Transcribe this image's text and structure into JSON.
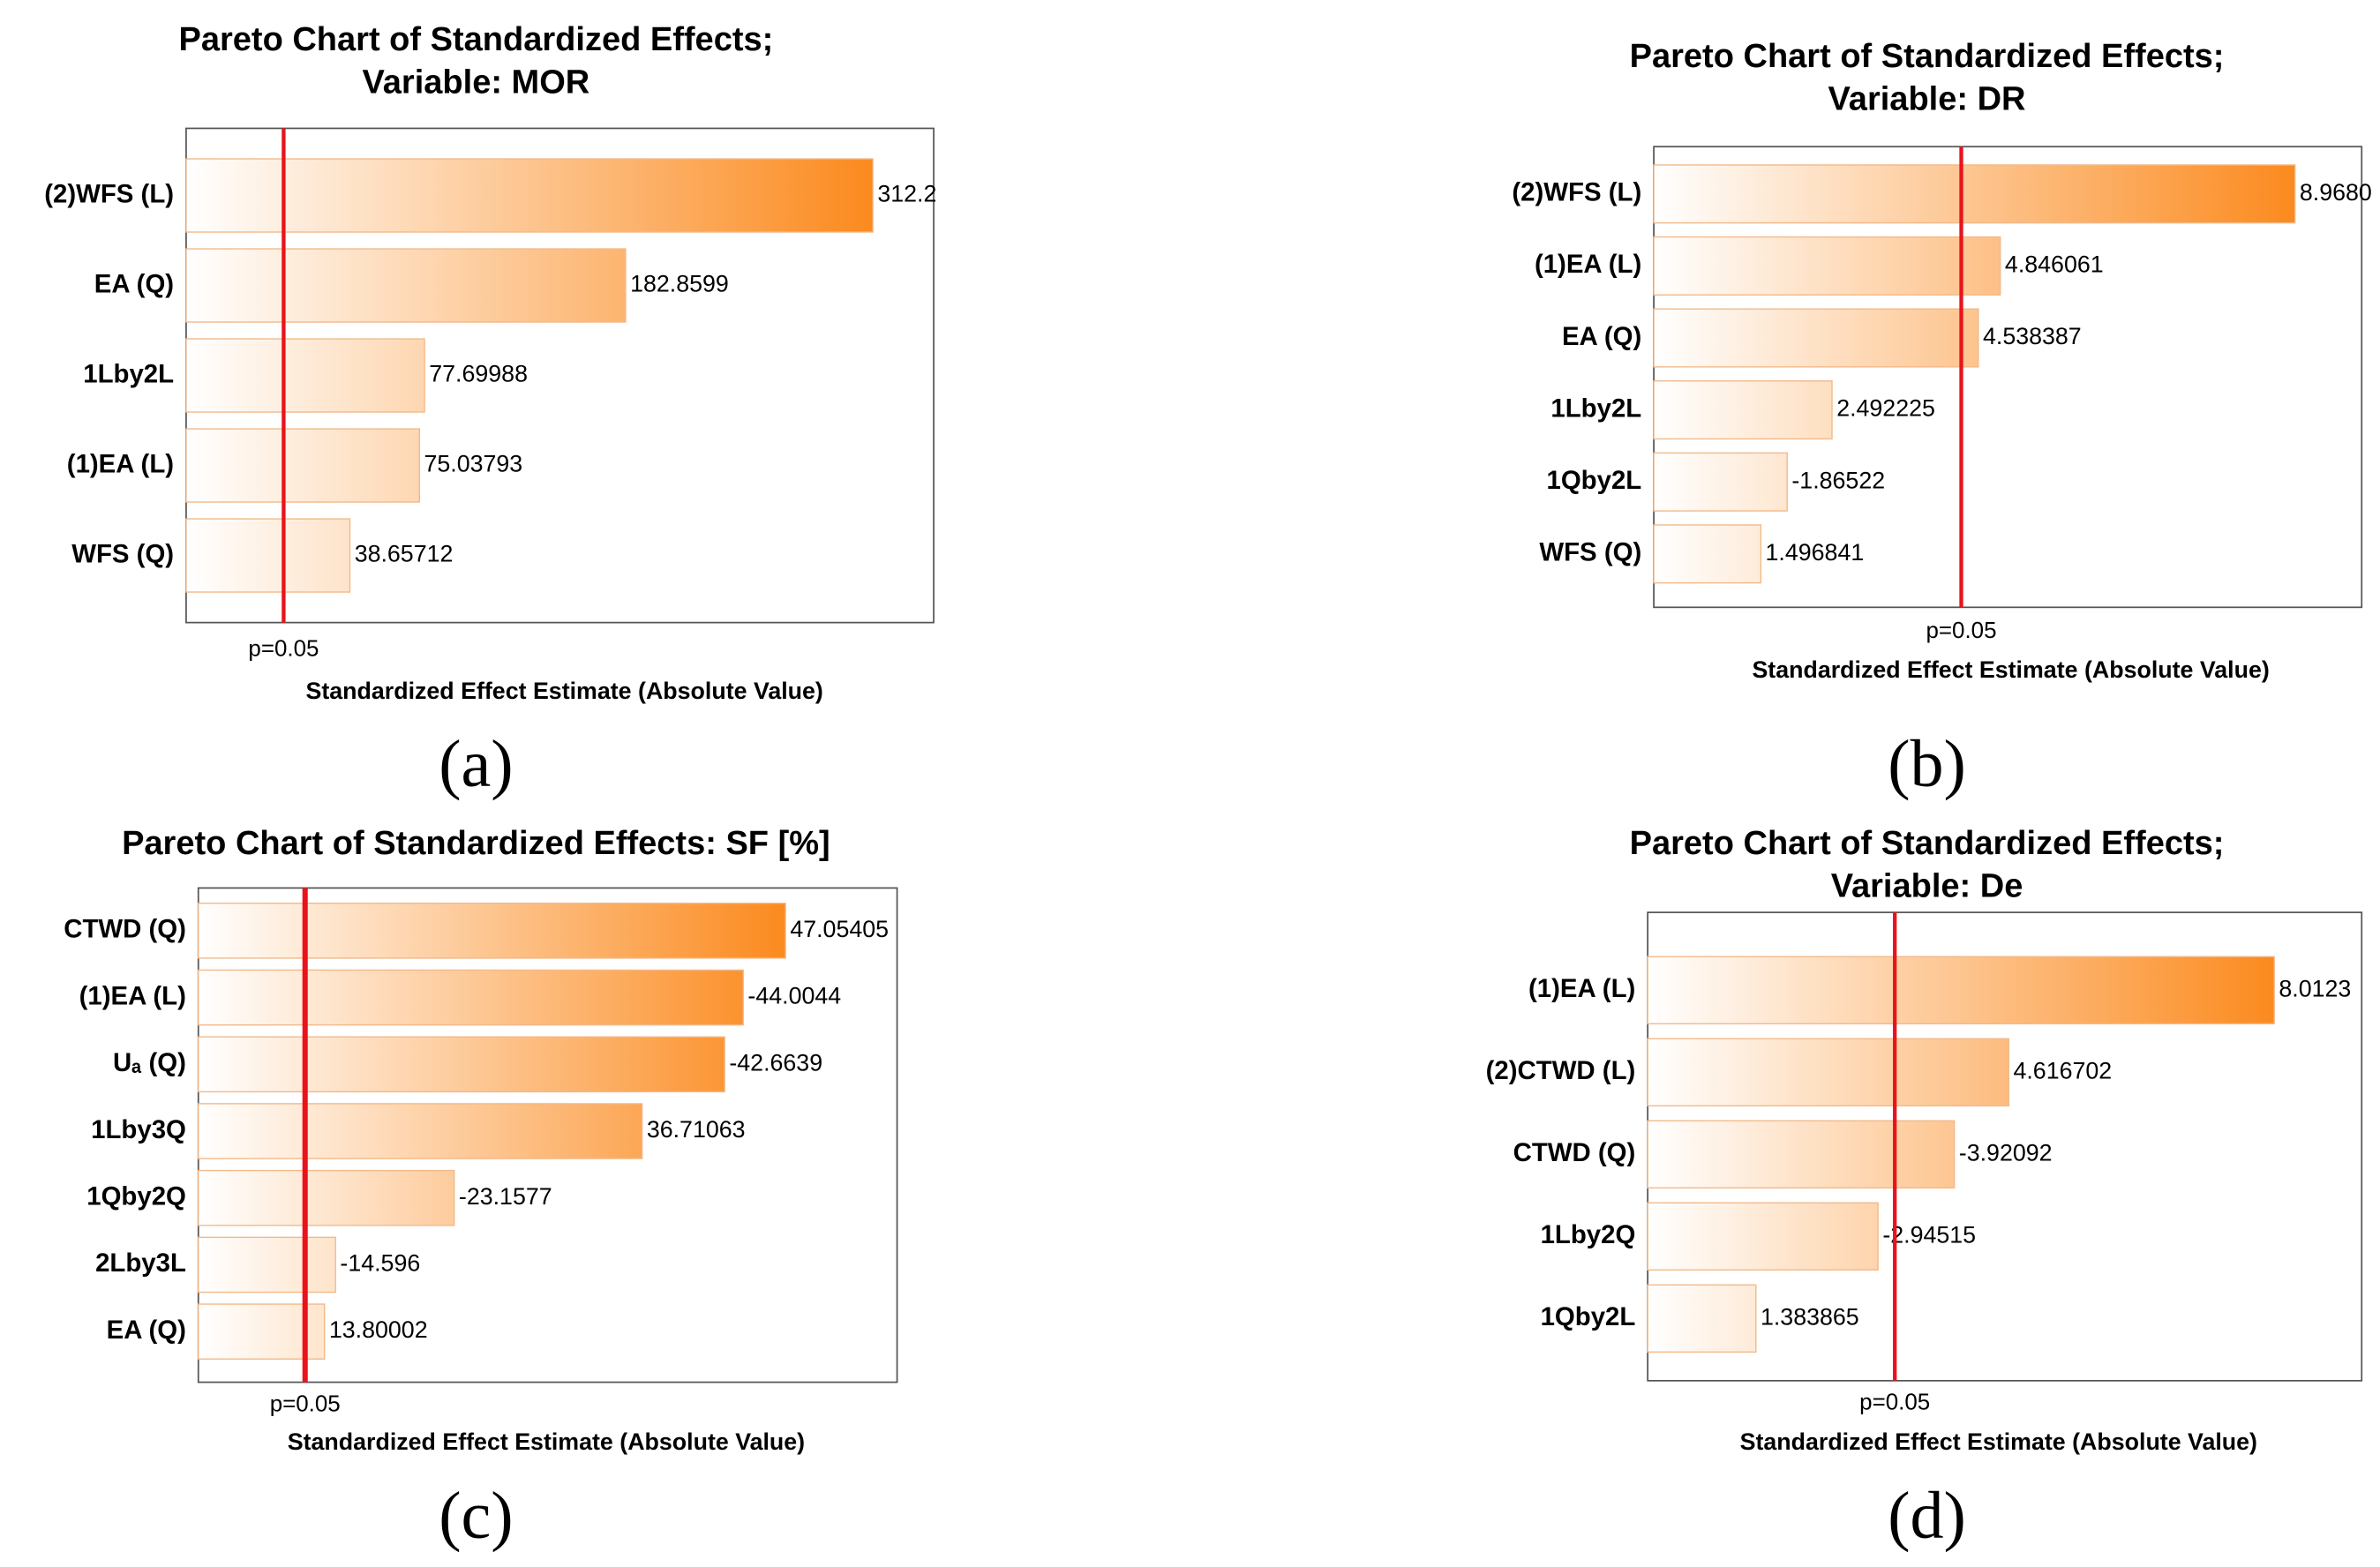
{
  "chart_data": [
    {
      "type": "pareto",
      "title": [
        "Pareto Chart of Standardized Effects;",
        "Variable: MOR"
      ],
      "categories": [
        "(2)WFS (L)",
        "EA (Q)",
        "1Lby2L",
        "(1)EA (L)",
        "WFS (Q)"
      ],
      "values": [
        312.2,
        182.8599,
        77.69988,
        75.03793,
        38.65712
      ],
      "value_labels": [
        "312.2",
        "182.8599",
        "77.69988",
        "75.03793",
        "38.65712"
      ],
      "color": "#fb8a1e",
      "xlim": [
        -47,
        344
      ],
      "reference_line": {
        "value": 4,
        "label": "p=0.05",
        "color": "#e8141b"
      },
      "x_label": "Standardized Effect Estimate (Absolute Value)",
      "panel_label": "(a)"
    },
    {
      "type": "pareto",
      "title": [
        "Pareto Chart of Standardized Effects;",
        "Variable: DR"
      ],
      "categories": [
        "(2)WFS (L)",
        "(1)EA (L)",
        "EA (Q)",
        "1Lby2L",
        "1Qby2L",
        "WFS (Q)"
      ],
      "values": [
        8.968,
        4.846061,
        4.538387,
        2.492225,
        1.86522,
        1.496841
      ],
      "value_labels": [
        "8.9680",
        "4.846061",
        "4.538387",
        "2.492225",
        "-1.86522",
        "1.496841"
      ],
      "color": "#fb8a1e",
      "xlim": [
        0,
        9.9
      ],
      "reference_line": {
        "value": 4.3,
        "label": "p=0.05",
        "color": "#e8141b"
      },
      "x_label": "Standardized Effect Estimate (Absolute Value)",
      "panel_label": "(b)"
    },
    {
      "type": "pareto",
      "title": [
        "Pareto Chart of Standardized Effects: SF [%]"
      ],
      "categories": [
        "CTWD (Q)",
        "(1)EA (L)",
        "Uₐ (Q)",
        "1Lby3Q",
        "1Qby2Q",
        "2Lby3L",
        "EA (Q)"
      ],
      "values": [
        47.05405,
        44.0044,
        42.6639,
        36.71063,
        23.1577,
        14.596,
        13.80002
      ],
      "value_labels": [
        "47.05405",
        "-44.0044",
        "-42.6639",
        "36.71063",
        "-23.1577",
        "-14.596",
        "13.80002"
      ],
      "color": "#fb8a1e",
      "xlim": [
        4.7,
        55.1
      ],
      "reference_line": {
        "value": 12.4,
        "label": "p=0.05",
        "color": "#e8141b"
      },
      "x_label": "Standardized Effect Estimate (Absolute Value)",
      "panel_label": "(c)"
    },
    {
      "type": "pareto",
      "title": [
        "Pareto Chart of Standardized Effects;",
        "Variable: De"
      ],
      "categories": [
        "(1)EA (L)",
        "(2)CTWD (L)",
        "CTWD (Q)",
        "1Lby2Q",
        "1Qby2L"
      ],
      "values": [
        8.0123,
        4.616702,
        3.92092,
        2.94515,
        1.383865
      ],
      "value_labels": [
        "8.0123",
        "4.616702",
        "-3.92092",
        "-2.94515",
        "1.383865"
      ],
      "color": "#fb8a1e",
      "xlim": [
        0,
        9.13
      ],
      "reference_line": {
        "value": 3.16,
        "label": "p=0.05",
        "color": "#e8141b"
      },
      "x_label": "Standardized Effect Estimate (Absolute Value)",
      "panel_label": "(d)"
    }
  ]
}
